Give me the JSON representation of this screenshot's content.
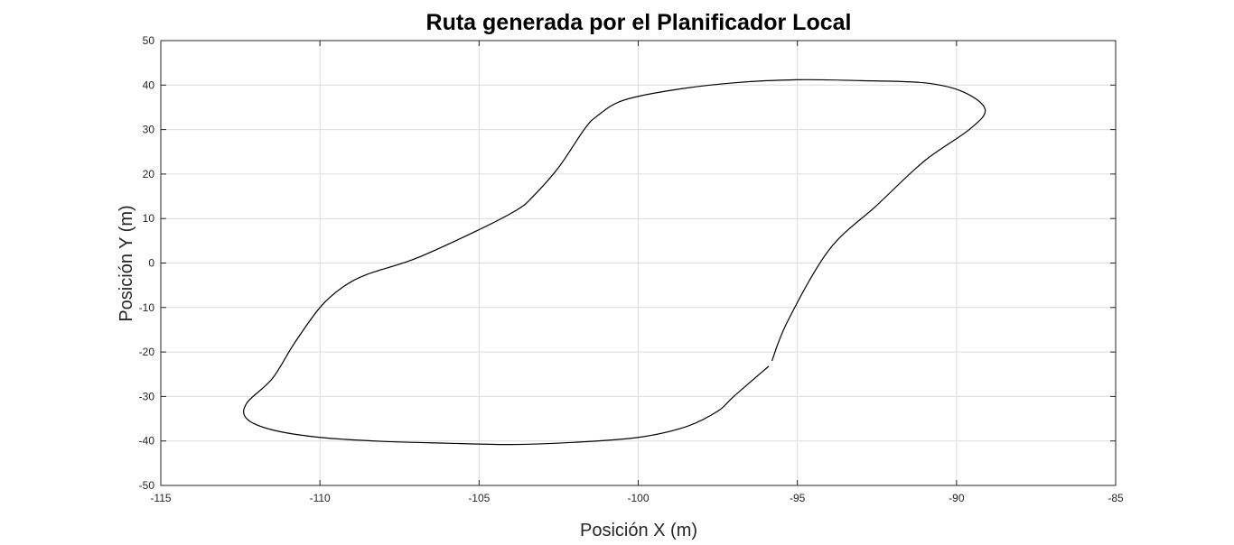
{
  "chart_data": {
    "type": "line",
    "title": "Ruta generada por el Planificador Local",
    "xlabel": "Posición X (m)",
    "ylabel": "Posición Y (m)",
    "xlim": [
      -115,
      -85
    ],
    "ylim": [
      -50,
      50
    ],
    "xticks": [
      -115,
      -110,
      -105,
      -100,
      -95,
      -90,
      -85
    ],
    "yticks": [
      -50,
      -40,
      -30,
      -20,
      -10,
      0,
      10,
      20,
      30,
      40,
      50
    ],
    "xtick_labels": [
      "-115",
      "-110",
      "-105",
      "-100",
      "-95",
      "-90",
      "-85"
    ],
    "ytick_labels": [
      "-50",
      "-40",
      "-30",
      "-20",
      "-10",
      "0",
      "10",
      "20",
      "30",
      "40",
      "50"
    ],
    "grid": true,
    "colors": {
      "line": "#000000",
      "grid": "#dcdcdc",
      "axes": "#262626"
    },
    "series": [
      {
        "segments": [
          [
            [
              -95.9,
              -23.2
            ],
            [
              -97.0,
              -30.0
            ],
            [
              -97.5,
              -33.3
            ],
            [
              -98.5,
              -36.8
            ],
            [
              -100.0,
              -39.2
            ],
            [
              -102.0,
              -40.3
            ],
            [
              -104.0,
              -40.8
            ],
            [
              -106.0,
              -40.5
            ],
            [
              -108.0,
              -40.1
            ],
            [
              -110.0,
              -39.2
            ],
            [
              -111.5,
              -37.5
            ],
            [
              -112.3,
              -35.0
            ],
            [
              -112.3,
              -31.5
            ],
            [
              -111.5,
              -26.0
            ],
            [
              -110.8,
              -18.0
            ],
            [
              -110.0,
              -10.0
            ],
            [
              -109.3,
              -5.5
            ],
            [
              -108.5,
              -2.5
            ],
            [
              -107.0,
              1.0
            ],
            [
              -105.0,
              7.5
            ],
            [
              -103.8,
              12.0
            ],
            [
              -103.3,
              15.0
            ],
            [
              -102.5,
              21.5
            ],
            [
              -101.7,
              30.0
            ],
            [
              -101.3,
              33.0
            ],
            [
              -100.5,
              36.5
            ],
            [
              -99.0,
              38.8
            ],
            [
              -97.0,
              40.5
            ],
            [
              -95.0,
              41.2
            ],
            [
              -93.0,
              41.0
            ],
            [
              -91.0,
              40.5
            ],
            [
              -89.8,
              38.5
            ],
            [
              -89.1,
              34.5
            ],
            [
              -89.6,
              30.0
            ],
            [
              -91.0,
              23.0
            ],
            [
              -92.5,
              13.0
            ],
            [
              -94.0,
              3.0
            ],
            [
              -95.3,
              -13.0
            ],
            [
              -95.8,
              -22.0
            ]
          ]
        ]
      }
    ]
  }
}
